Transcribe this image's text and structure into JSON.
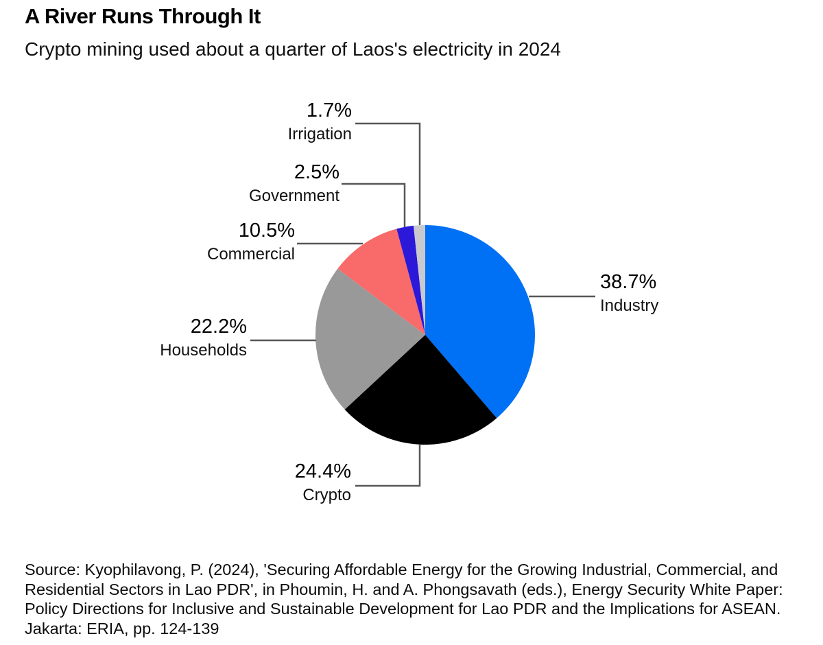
{
  "header": {
    "title": "A River Runs Through It",
    "subtitle": "Crypto mining used about a quarter of Laos's electricity in 2024"
  },
  "chart_data": {
    "type": "pie",
    "title": "A River Runs Through It",
    "subtitle": "Crypto mining used about a quarter of Laos's electricity in 2024",
    "unit": "percent of Laos's electricity use, 2024",
    "start_angle_deg": 0,
    "direction": "clockwise",
    "legend": "none",
    "labels_style": "outside-with-leader-lines",
    "slices": [
      {
        "label": "Industry",
        "value": 38.7,
        "pct_label": "38.7%",
        "color": "#0070f5"
      },
      {
        "label": "Crypto",
        "value": 24.4,
        "pct_label": "24.4%",
        "color": "#000000"
      },
      {
        "label": "Households",
        "value": 22.2,
        "pct_label": "22.2%",
        "color": "#999999"
      },
      {
        "label": "Commercial",
        "value": 10.5,
        "pct_label": "10.5%",
        "color": "#f96a6a"
      },
      {
        "label": "Government",
        "value": 2.5,
        "pct_label": "2.5%",
        "color": "#2b18d9"
      },
      {
        "label": "Irrigation",
        "value": 1.7,
        "pct_label": "1.7%",
        "color": "#c9c9ce"
      }
    ]
  },
  "source": {
    "lines": [
      "Source: Kyophilavong, P. (2024), 'Securing Affordable Energy for the Growing Industrial, Commercial, and",
      "Residential Sectors in Lao PDR', in Phoumin, H. and A. Phongsavath (eds.), Energy Security White Paper:",
      "Policy Directions for Inclusive and Sustainable Development for Lao PDR and the Implications for ASEAN.",
      "Jakarta: ERIA, pp. 124-139"
    ]
  },
  "colors": {
    "background": "#ffffff",
    "text": "#000000",
    "leader_line": "#575757"
  }
}
